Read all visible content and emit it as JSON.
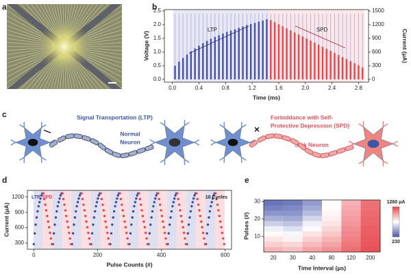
{
  "panel_labels": [
    "a",
    "b",
    "c",
    "d",
    "e"
  ],
  "diagram": {
    "ltp_text": "Signal Transportation (LTP)",
    "normal_neuron": [
      "Normal",
      "Neuron"
    ],
    "spd_text": [
      "Forbiddance with Self-",
      "Protective Depression (SPD)"
    ],
    "sick_neuron": "Sick Neuron"
  },
  "chart_data": [
    {
      "type": "pulse",
      "xlabel": "Time (ms)",
      "ylabel": "Voltage (V)",
      "y2label": "Current (μA)",
      "xlim": [
        -0.12,
        2.95
      ],
      "xticks": [
        {
          "value": 0,
          "label": "0.0"
        },
        0.4,
        0.8,
        1.2,
        1.6,
        {
          "value": 2,
          "label": "2.0"
        },
        2.4,
        2.8
      ],
      "ylim": [
        -0.1,
        2.55
      ],
      "yticks": [
        {
          "value": 0,
          "label": "0.0"
        },
        0.5,
        {
          "value": 1,
          "label": "1.0"
        },
        1.5,
        {
          "value": 2,
          "label": "2.0"
        },
        2.5
      ],
      "y2lim": [
        -60,
        1530
      ],
      "y2ticks": [
        0,
        300,
        600,
        900,
        1200,
        1500
      ],
      "annotations": [
        "LTP",
        "SPD"
      ],
      "series": [
        {
          "color": "#a9a9d6",
          "x": [
            0.04,
            0.1,
            0.16,
            0.22,
            0.28,
            0.34,
            0.4,
            0.46,
            0.52,
            0.58,
            0.64,
            0.7,
            0.76,
            0.82,
            0.88,
            0.94,
            1,
            1.06,
            1.12,
            1.18,
            1.24,
            1.3,
            1.36,
            1.42,
            1.48,
            1.54,
            1.6,
            1.66,
            1.72,
            1.78,
            1.84,
            1.9,
            1.96,
            2.02,
            2.08,
            2.14,
            2.2,
            2.26,
            2.32,
            2.38,
            2.44,
            2.5,
            2.56,
            2.62,
            2.68,
            2.74,
            2.8,
            2.86
          ],
          "values": [
            2.4,
            2.4,
            2.4,
            2.4,
            2.4,
            2.4,
            2.4,
            2.4,
            2.4,
            2.4,
            2.4,
            2.4,
            2.4,
            2.4,
            2.4,
            2.4,
            2.4,
            2.4,
            2.4,
            2.4,
            2.4,
            2.4,
            2.4,
            2.4,
            2.4,
            2.4,
            2.4,
            2.4,
            2.4,
            2.4,
            2.4,
            2.4,
            2.4,
            2.4,
            2.4,
            2.4,
            2.4,
            2.4,
            2.4,
            2.4,
            2.4,
            2.4,
            2.4,
            2.4,
            2.4,
            2.4,
            2.4,
            2.4
          ]
        },
        {
          "color": "#4450a8",
          "axis": "y2",
          "x": [
            0.04,
            0.1,
            0.16,
            0.22,
            0.28,
            0.34,
            0.4,
            0.46,
            0.52,
            0.58,
            0.64,
            0.7,
            0.76,
            0.82,
            0.88,
            0.94,
            1,
            1.06,
            1.12,
            1.18,
            1.24,
            1.3,
            1.36,
            1.42
          ],
          "values": [
            300,
            390,
            470,
            545,
            615,
            680,
            740,
            795,
            845,
            890,
            930,
            970,
            1005,
            1040,
            1070,
            1100,
            1130,
            1160,
            1190,
            1215,
            1240,
            1265,
            1290,
            1320
          ]
        },
        {
          "color": "#e8434b",
          "axis": "y2",
          "x": [
            1.48,
            1.54,
            1.6,
            1.66,
            1.72,
            1.78,
            1.84,
            1.9,
            1.96,
            2.02,
            2.08,
            2.14,
            2.2,
            2.26,
            2.32,
            2.38,
            2.44,
            2.5,
            2.56,
            2.62,
            2.68,
            2.74,
            2.8,
            2.86
          ],
          "values": [
            1300,
            1255,
            1210,
            1165,
            1120,
            1075,
            1030,
            985,
            940,
            895,
            850,
            805,
            760,
            715,
            670,
            625,
            580,
            535,
            490,
            445,
            400,
            355,
            310,
            265
          ]
        }
      ]
    },
    {
      "type": "scatter",
      "xlabel": "Pulse Counts (#)",
      "ylabel": "Current (μA)",
      "annotation": "10 Cycles",
      "xlim": [
        -20,
        620
      ],
      "xticks": [
        0,
        200,
        400,
        600
      ],
      "ylim": [
        180,
        1330
      ],
      "yticks": [
        300,
        600,
        900,
        1200
      ],
      "series": [
        {
          "name": "LTP",
          "color": "#3b4aa3",
          "x": [
            0,
            3,
            6,
            9,
            12,
            15,
            18,
            21,
            24,
            27,
            60,
            63,
            66,
            69,
            72,
            75,
            78,
            81,
            84,
            87,
            120,
            123,
            126,
            129,
            132,
            135,
            138,
            141,
            144,
            147,
            180,
            183,
            186,
            189,
            192,
            195,
            198,
            201,
            204,
            207,
            240,
            243,
            246,
            249,
            252,
            255,
            258,
            261,
            264,
            267,
            300,
            303,
            306,
            309,
            312,
            315,
            318,
            321,
            324,
            327,
            360,
            363,
            366,
            369,
            372,
            375,
            378,
            381,
            384,
            387,
            420,
            423,
            426,
            429,
            432,
            435,
            438,
            441,
            444,
            447,
            480,
            483,
            486,
            489,
            492,
            495,
            498,
            501,
            504,
            507,
            540,
            543,
            546,
            549,
            552,
            555,
            558,
            561,
            564,
            567
          ],
          "values": [
            280,
            490,
            660,
            800,
            920,
            1020,
            1100,
            1170,
            1230,
            1270,
            280,
            490,
            660,
            800,
            920,
            1020,
            1100,
            1170,
            1230,
            1270,
            280,
            490,
            660,
            800,
            920,
            1020,
            1100,
            1170,
            1230,
            1270,
            280,
            490,
            660,
            800,
            920,
            1020,
            1100,
            1170,
            1230,
            1270,
            280,
            490,
            660,
            800,
            920,
            1020,
            1100,
            1170,
            1230,
            1270,
            280,
            490,
            660,
            800,
            920,
            1020,
            1100,
            1170,
            1230,
            1270,
            280,
            490,
            660,
            800,
            920,
            1020,
            1100,
            1170,
            1230,
            1270,
            280,
            490,
            660,
            800,
            920,
            1020,
            1100,
            1170,
            1230,
            1270,
            280,
            490,
            660,
            800,
            920,
            1020,
            1100,
            1170,
            1230,
            1270,
            280,
            490,
            660,
            800,
            920,
            1020,
            1100,
            1170,
            1230,
            1270
          ]
        },
        {
          "name": "SPD",
          "color": "#e8434b",
          "x": [
            30,
            33,
            36,
            39,
            42,
            45,
            48,
            51,
            54,
            57,
            90,
            93,
            96,
            99,
            102,
            105,
            108,
            111,
            114,
            117,
            150,
            153,
            156,
            159,
            162,
            165,
            168,
            171,
            174,
            177,
            210,
            213,
            216,
            219,
            222,
            225,
            228,
            231,
            234,
            237,
            270,
            273,
            276,
            279,
            282,
            285,
            288,
            291,
            294,
            297,
            330,
            333,
            336,
            339,
            342,
            345,
            348,
            351,
            354,
            357,
            390,
            393,
            396,
            399,
            402,
            405,
            408,
            411,
            414,
            417,
            450,
            453,
            456,
            459,
            462,
            465,
            468,
            471,
            474,
            477,
            510,
            513,
            516,
            519,
            522,
            525,
            528,
            531,
            534,
            537,
            570,
            573,
            576,
            579,
            582,
            585,
            588,
            591,
            594,
            597
          ],
          "values": [
            1270,
            1160,
            1050,
            940,
            830,
            720,
            610,
            500,
            390,
            280,
            1270,
            1160,
            1050,
            940,
            830,
            720,
            610,
            500,
            390,
            280,
            1270,
            1160,
            1050,
            940,
            830,
            720,
            610,
            500,
            390,
            280,
            1270,
            1160,
            1050,
            940,
            830,
            720,
            610,
            500,
            390,
            280,
            1270,
            1160,
            1050,
            940,
            830,
            720,
            610,
            500,
            390,
            280,
            1270,
            1160,
            1050,
            940,
            830,
            720,
            610,
            500,
            390,
            280,
            1270,
            1160,
            1050,
            940,
            830,
            720,
            610,
            500,
            390,
            280,
            1270,
            1160,
            1050,
            940,
            830,
            720,
            610,
            500,
            390,
            280,
            1270,
            1160,
            1050,
            940,
            830,
            720,
            610,
            500,
            390,
            280,
            1270,
            1160,
            1050,
            940,
            830,
            720,
            610,
            500,
            390,
            280
          ]
        }
      ]
    },
    {
      "type": "heatmap",
      "xlabel": "Time Interval (μs)",
      "ylabel": "Pulses (#)",
      "categories": [
        "20",
        "30",
        "40",
        "80",
        "120",
        "200"
      ],
      "ybins": [
        1,
        4,
        7,
        10,
        13,
        16,
        19,
        22,
        25,
        28,
        31
      ],
      "ylim": [
        1,
        31
      ],
      "yticks": [
        10,
        20,
        30
      ],
      "colorscale": [
        "#4a58ab",
        "#ffffff",
        "#e8474d"
      ],
      "zlim": [
        230,
        1260
      ],
      "zticks": [
        {
          "value": 1260,
          "label": "1260 μA"
        },
        230
      ],
      "z": [
        [
          950,
          920,
          1000,
          1050,
          1150,
          1230
        ],
        [
          880,
          860,
          940,
          1000,
          1120,
          1220
        ],
        [
          820,
          780,
          880,
          950,
          1100,
          1210
        ],
        [
          760,
          720,
          820,
          900,
          1080,
          1200
        ],
        [
          700,
          650,
          760,
          860,
          1060,
          1190
        ],
        [
          600,
          560,
          700,
          820,
          1040,
          1180
        ],
        [
          500,
          480,
          620,
          790,
          1020,
          1170
        ],
        [
          420,
          420,
          540,
          770,
          1000,
          1160
        ],
        [
          360,
          380,
          480,
          750,
          980,
          1150
        ],
        [
          320,
          340,
          440,
          740,
          960,
          1140
        ]
      ]
    }
  ]
}
